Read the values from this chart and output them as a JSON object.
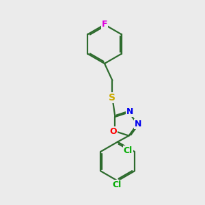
{
  "bg_color": "#ebebeb",
  "bond_color": "#2d6b2d",
  "atom_colors": {
    "F": "#dd00dd",
    "S": "#ccaa00",
    "O": "#ff0000",
    "N": "#0000ee",
    "Cl": "#00aa00"
  },
  "line_width": 1.6,
  "figsize": [
    3.0,
    3.0
  ],
  "dpi": 100
}
